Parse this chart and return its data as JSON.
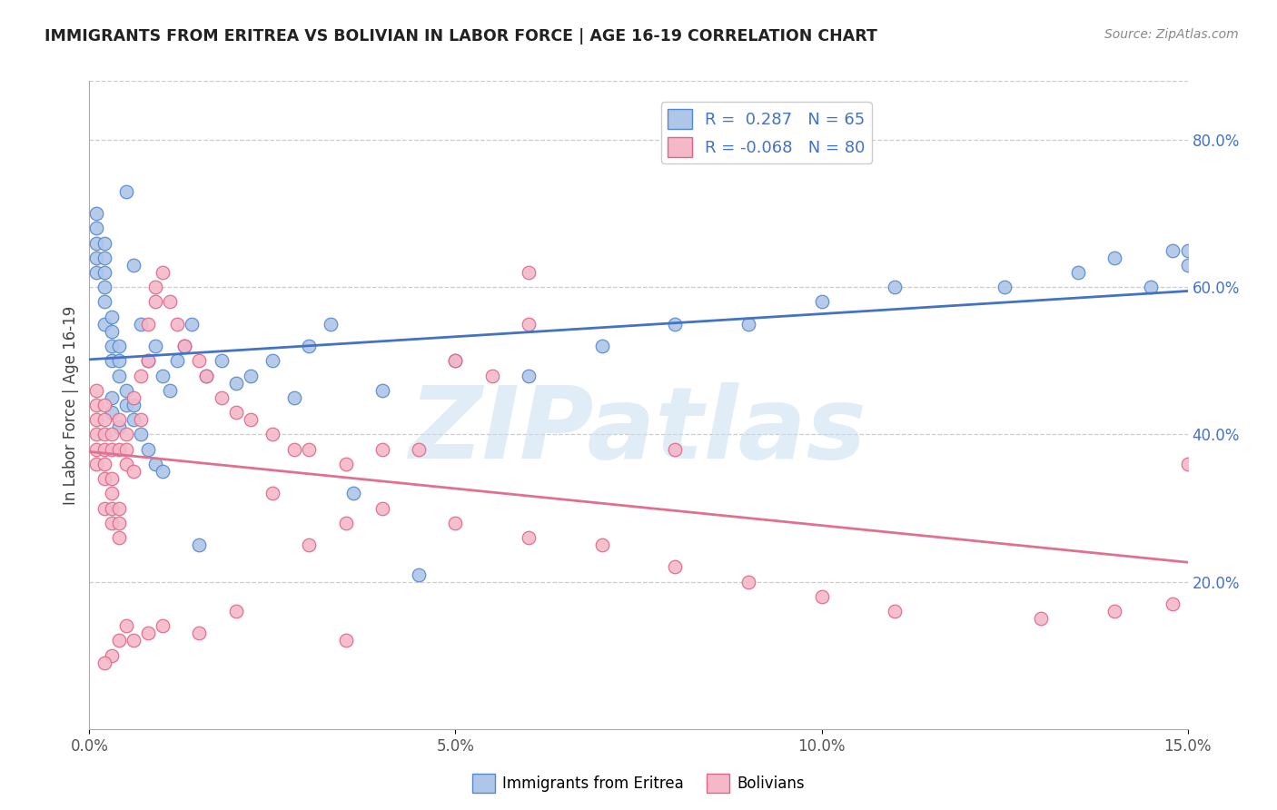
{
  "title": "IMMIGRANTS FROM ERITREA VS BOLIVIAN IN LABOR FORCE | AGE 16-19 CORRELATION CHART",
  "source": "Source: ZipAtlas.com",
  "ylabel": "In Labor Force | Age 16-19",
  "xlim": [
    0.0,
    0.15
  ],
  "ylim": [
    0.0,
    0.88
  ],
  "xticks": [
    0.0,
    0.05,
    0.1,
    0.15
  ],
  "xticklabels": [
    "0.0%",
    "5.0%",
    "10.0%",
    "15.0%"
  ],
  "yticks_right": [
    0.2,
    0.4,
    0.6,
    0.8
  ],
  "ytick_right_labels": [
    "20.0%",
    "40.0%",
    "60.0%",
    "80.0%"
  ],
  "legend_r1": "R =  0.287",
  "legend_n1": "N = 65",
  "legend_r2": "R = -0.068",
  "legend_n2": "N = 80",
  "color_eritrea_fill": "#aec6e8",
  "color_eritrea_edge": "#5588cc",
  "color_bolivian_fill": "#f4b8c8",
  "color_bolivian_edge": "#dd6688",
  "color_line_eritrea": "#4472c4",
  "color_line_bolivian": "#e07090",
  "color_legend_text": "#4472c4",
  "watermark": "ZIPatlas",
  "background": "#ffffff",
  "gridcolor": "#cccccc",
  "eritrea_x": [
    0.001,
    0.001,
    0.001,
    0.001,
    0.001,
    0.002,
    0.002,
    0.002,
    0.002,
    0.002,
    0.002,
    0.003,
    0.003,
    0.003,
    0.003,
    0.003,
    0.003,
    0.004,
    0.004,
    0.004,
    0.004,
    0.005,
    0.005,
    0.005,
    0.006,
    0.006,
    0.006,
    0.007,
    0.007,
    0.008,
    0.008,
    0.009,
    0.009,
    0.01,
    0.01,
    0.011,
    0.012,
    0.013,
    0.014,
    0.015,
    0.016,
    0.018,
    0.02,
    0.022,
    0.025,
    0.028,
    0.03,
    0.033,
    0.036,
    0.04,
    0.045,
    0.05,
    0.06,
    0.07,
    0.08,
    0.09,
    0.1,
    0.11,
    0.125,
    0.135,
    0.14,
    0.145,
    0.148,
    0.15,
    0.15
  ],
  "eritrea_y": [
    0.62,
    0.64,
    0.66,
    0.68,
    0.7,
    0.58,
    0.6,
    0.62,
    0.64,
    0.66,
    0.55,
    0.5,
    0.52,
    0.54,
    0.56,
    0.43,
    0.45,
    0.48,
    0.5,
    0.52,
    0.41,
    0.44,
    0.46,
    0.73,
    0.42,
    0.44,
    0.63,
    0.4,
    0.55,
    0.38,
    0.5,
    0.36,
    0.52,
    0.35,
    0.48,
    0.46,
    0.5,
    0.52,
    0.55,
    0.25,
    0.48,
    0.5,
    0.47,
    0.48,
    0.5,
    0.45,
    0.52,
    0.55,
    0.32,
    0.46,
    0.21,
    0.5,
    0.48,
    0.52,
    0.55,
    0.55,
    0.58,
    0.6,
    0.6,
    0.62,
    0.64,
    0.6,
    0.65,
    0.63,
    0.65
  ],
  "bolivian_x": [
    0.001,
    0.001,
    0.001,
    0.001,
    0.001,
    0.001,
    0.002,
    0.002,
    0.002,
    0.002,
    0.002,
    0.002,
    0.002,
    0.003,
    0.003,
    0.003,
    0.003,
    0.003,
    0.003,
    0.004,
    0.004,
    0.004,
    0.004,
    0.004,
    0.005,
    0.005,
    0.005,
    0.006,
    0.006,
    0.007,
    0.007,
    0.008,
    0.008,
    0.009,
    0.009,
    0.01,
    0.011,
    0.012,
    0.013,
    0.015,
    0.016,
    0.018,
    0.02,
    0.022,
    0.025,
    0.028,
    0.03,
    0.035,
    0.04,
    0.05,
    0.03,
    0.04,
    0.05,
    0.06,
    0.07,
    0.08,
    0.09,
    0.1,
    0.11,
    0.13,
    0.14,
    0.148,
    0.15,
    0.06,
    0.055,
    0.045,
    0.035,
    0.025,
    0.02,
    0.015,
    0.01,
    0.008,
    0.006,
    0.005,
    0.004,
    0.003,
    0.002,
    0.035,
    0.06,
    0.08
  ],
  "bolivian_y": [
    0.38,
    0.4,
    0.42,
    0.44,
    0.46,
    0.36,
    0.34,
    0.36,
    0.38,
    0.4,
    0.42,
    0.44,
    0.3,
    0.28,
    0.3,
    0.32,
    0.34,
    0.38,
    0.4,
    0.26,
    0.28,
    0.3,
    0.38,
    0.42,
    0.36,
    0.38,
    0.4,
    0.35,
    0.45,
    0.42,
    0.48,
    0.5,
    0.55,
    0.58,
    0.6,
    0.62,
    0.58,
    0.55,
    0.52,
    0.5,
    0.48,
    0.45,
    0.43,
    0.42,
    0.4,
    0.38,
    0.38,
    0.36,
    0.38,
    0.5,
    0.25,
    0.3,
    0.28,
    0.26,
    0.25,
    0.22,
    0.2,
    0.18,
    0.16,
    0.15,
    0.16,
    0.17,
    0.36,
    0.55,
    0.48,
    0.38,
    0.28,
    0.32,
    0.16,
    0.13,
    0.14,
    0.13,
    0.12,
    0.14,
    0.12,
    0.1,
    0.09,
    0.12,
    0.62,
    0.38
  ]
}
